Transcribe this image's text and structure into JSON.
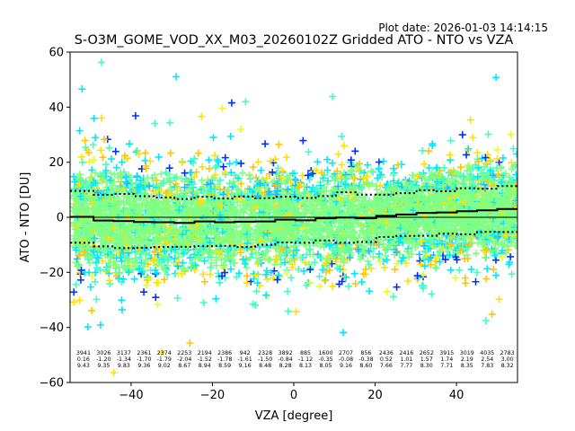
{
  "chart_data": {
    "type": "scatter",
    "title": "S-O3M_GOME_VOD_XX_M03_20260102Z Gridded ATO - NTO vs VZA",
    "subtitle": "Plot date: 2026-01-03 14:14:15",
    "xlabel": "VZA [degree]",
    "ylabel": "ATO - NTO [DU]",
    "xlim": [
      -55,
      55
    ],
    "ylim": [
      -60,
      60
    ],
    "xticks": [
      -40,
      -20,
      0,
      20,
      40
    ],
    "xtick_labels": [
      "−40",
      "−20",
      "0",
      "20",
      "40"
    ],
    "yticks": [
      -60,
      -40,
      -20,
      0,
      20,
      40,
      60
    ],
    "ytick_labels": [
      "−60",
      "−40",
      "−20",
      "0",
      "20",
      "40",
      "60"
    ],
    "grid": false,
    "marker": "+",
    "series_colors": [
      "#80ff80",
      "#7cfc9c",
      "#40ffc0",
      "#00e8ff",
      "#20b8ff",
      "#ffe000",
      "#ffc400",
      "#e8ff20",
      "#0030ff"
    ],
    "reference_line": {
      "name": "zero",
      "y": 0,
      "color": "#000000"
    },
    "mean_line_color": "#000000",
    "std_line_color": "#000000",
    "bins": {
      "first_center": -51.7,
      "last_center": 52.5,
      "count_labels": [
        "3941",
        "3026",
        "3137",
        "2361",
        "2374",
        "2253",
        "2194",
        "2386",
        "942",
        "2328",
        "3892",
        "885",
        "1600",
        "2707",
        "856",
        "2436",
        "2416",
        "2652",
        "3915",
        "3019",
        "4035",
        "2783"
      ],
      "mean_labels": [
        "0.16",
        "-1.20",
        "-1.34",
        "-1.70",
        "-1.79",
        "-2.04",
        "-1.52",
        "-1.78",
        "-1.61",
        "-1.50",
        "-0.84",
        "-1.12",
        "-0.35",
        "-0.08",
        "-0.38",
        "0.52",
        "1.01",
        "1.57",
        "1.74",
        "2.19",
        "2.54",
        "3.00"
      ],
      "std_labels": [
        "9.43",
        "9.35",
        "9.83",
        "9.36",
        "9.02",
        "8.67",
        "8.94",
        "8.59",
        "9.16",
        "8.48",
        "8.28",
        "8.13",
        "8.05",
        "9.16",
        "8.60",
        "7.66",
        "7.77",
        "8.30",
        "7.71",
        "8.35",
        "7.83",
        "8.32"
      ],
      "counts": [
        3941,
        3026,
        3137,
        2361,
        2374,
        2253,
        2194,
        2386,
        942,
        2328,
        3892,
        885,
        1600,
        2707,
        856,
        2436,
        2416,
        2652,
        3915,
        3019,
        4035,
        2783
      ],
      "mean": [
        0.16,
        -1.2,
        -1.34,
        -1.7,
        -1.79,
        -2.04,
        -1.52,
        -1.78,
        -1.61,
        -1.5,
        -0.84,
        -1.12,
        -0.35,
        -0.08,
        -0.38,
        0.52,
        1.01,
        1.57,
        1.74,
        2.19,
        2.54,
        3.0
      ],
      "std": [
        9.43,
        9.35,
        9.83,
        9.36,
        9.02,
        8.67,
        8.94,
        8.59,
        9.16,
        8.48,
        8.28,
        8.13,
        8.05,
        9.16,
        8.6,
        7.66,
        7.77,
        8.3,
        7.71,
        8.35,
        7.83,
        8.32
      ]
    }
  }
}
